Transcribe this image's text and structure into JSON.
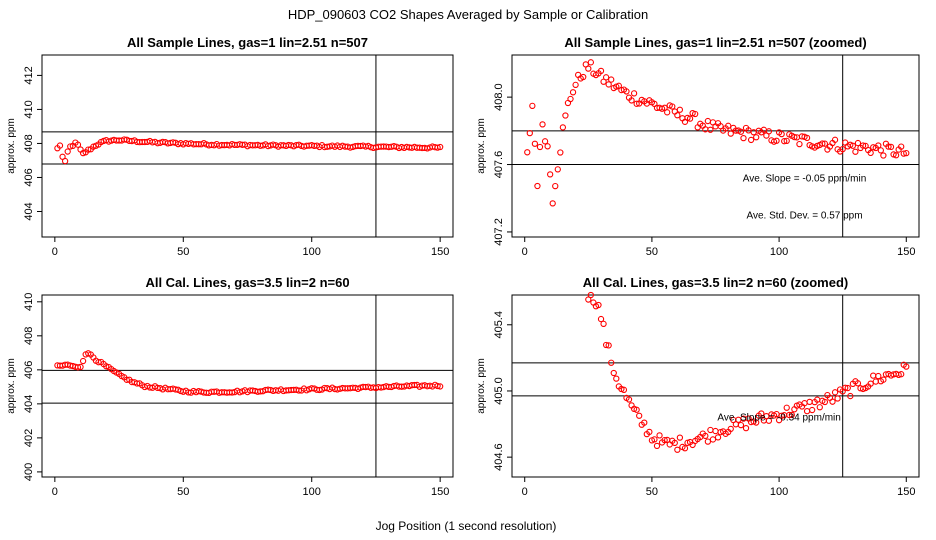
{
  "figure": {
    "title": "HDP_090603  CO2 Shapes Averaged by Sample or Calibration",
    "xlabel": "Jog Position (1 second resolution)"
  },
  "colors": {
    "points": "#ff0000",
    "lines": "#000000"
  },
  "chart_data": [
    {
      "id": "p1",
      "type": "scatter",
      "title": "All Sample Lines, gas=1 lin=2.51 n=507",
      "ylabel": "approx. ppm",
      "xlim": [
        -5,
        155
      ],
      "ylim": [
        402.5,
        413.2
      ],
      "xticks": [
        0,
        50,
        100,
        150
      ],
      "yticks": [
        404,
        406,
        408,
        410,
        412
      ],
      "hlines": [
        406.79,
        408.68
      ],
      "vlines": [
        125
      ],
      "annotations": [],
      "curve": [
        [
          1,
          407.7
        ],
        [
          2,
          407.9
        ],
        [
          3,
          407.2
        ],
        [
          4,
          406.9
        ],
        [
          5,
          407.5
        ],
        [
          6,
          407.8
        ],
        [
          7,
          407.9
        ],
        [
          8,
          408.0
        ],
        [
          9,
          407.9
        ],
        [
          10,
          407.6
        ],
        [
          11,
          407.4
        ],
        [
          12,
          407.5
        ],
        [
          14,
          407.7
        ],
        [
          16,
          407.9
        ],
        [
          18,
          408.05
        ],
        [
          20,
          408.15
        ],
        [
          25,
          408.2
        ],
        [
          30,
          408.15
        ],
        [
          40,
          408.05
        ],
        [
          50,
          408.0
        ],
        [
          60,
          407.95
        ],
        [
          75,
          407.9
        ],
        [
          100,
          407.85
        ],
        [
          125,
          407.8
        ],
        [
          150,
          407.75
        ]
      ]
    },
    {
      "id": "p2",
      "type": "scatter",
      "title": "All Sample Lines, gas=1 lin=2.51 n=507 (zoomed)",
      "ylabel": "approx. ppm",
      "xlim": [
        -5,
        155
      ],
      "ylim": [
        407.17,
        408.25
      ],
      "xticks": [
        0,
        50,
        100,
        150
      ],
      "yticks": [
        407.2,
        407.6,
        408.0
      ],
      "hlines": [
        407.6,
        407.8
      ],
      "vlines": [
        125
      ],
      "annotations": [
        "Ave. Slope =  -0.05  ppm/min",
        "Ave. Std. Dev. =  0.57  ppm"
      ],
      "curve": [
        [
          1,
          407.65
        ],
        [
          3,
          407.95
        ],
        [
          5,
          407.5
        ],
        [
          7,
          407.85
        ],
        [
          9,
          407.7
        ],
        [
          11,
          407.4
        ],
        [
          13,
          407.6
        ],
        [
          15,
          407.8
        ],
        [
          17,
          407.95
        ],
        [
          19,
          408.05
        ],
        [
          21,
          408.1
        ],
        [
          23,
          408.15
        ],
        [
          25,
          408.18
        ],
        [
          28,
          408.15
        ],
        [
          30,
          408.12
        ],
        [
          35,
          408.07
        ],
        [
          40,
          408.02
        ],
        [
          45,
          407.99
        ],
        [
          50,
          407.96
        ],
        [
          55,
          407.93
        ],
        [
          60,
          407.9
        ],
        [
          65,
          407.88
        ],
        [
          70,
          407.84
        ],
        [
          75,
          407.81
        ],
        [
          80,
          407.8
        ],
        [
          90,
          407.78
        ],
        [
          100,
          407.76
        ],
        [
          110,
          407.74
        ],
        [
          120,
          407.72
        ],
        [
          125,
          407.71
        ],
        [
          135,
          407.7
        ],
        [
          150,
          407.67
        ]
      ]
    },
    {
      "id": "p3",
      "type": "scatter",
      "title": "All Cal. Lines, gas=3.5 lin=2 n=60",
      "ylabel": "approx. ppm",
      "xlim": [
        -5,
        155
      ],
      "ylim": [
        399.7,
        410.4
      ],
      "xticks": [
        0,
        50,
        100,
        150
      ],
      "yticks": [
        400,
        402,
        404,
        406,
        408,
        410
      ],
      "hlines": [
        404.04,
        405.97
      ],
      "vlines": [
        125
      ],
      "annotations": [],
      "curve": [
        [
          1,
          406.2
        ],
        [
          5,
          406.3
        ],
        [
          8,
          406.15
        ],
        [
          10,
          406.2
        ],
        [
          12,
          406.95
        ],
        [
          14,
          406.9
        ],
        [
          16,
          406.6
        ],
        [
          20,
          406.2
        ],
        [
          25,
          405.7
        ],
        [
          30,
          405.3
        ],
        [
          35,
          405.05
        ],
        [
          40,
          404.95
        ],
        [
          45,
          404.85
        ],
        [
          50,
          404.75
        ],
        [
          55,
          404.7
        ],
        [
          60,
          404.7
        ],
        [
          70,
          404.72
        ],
        [
          80,
          404.78
        ],
        [
          90,
          404.82
        ],
        [
          100,
          404.86
        ],
        [
          110,
          404.9
        ],
        [
          120,
          404.95
        ],
        [
          130,
          405.0
        ],
        [
          140,
          405.05
        ],
        [
          150,
          405.08
        ]
      ]
    },
    {
      "id": "p4",
      "type": "scatter",
      "title": "All Cal. Lines, gas=3.5 lin=2 n=60 (zoomed)",
      "ylabel": "approx. ppm",
      "xlim": [
        -5,
        155
      ],
      "ylim": [
        404.48,
        405.58
      ],
      "xticks": [
        0,
        50,
        100,
        150
      ],
      "yticks": [
        404.6,
        405.0,
        405.4
      ],
      "hlines": [
        404.97,
        405.17
      ],
      "vlines": [
        125
      ],
      "annotations": [
        "Ave. Slope =  -0.34  ppm/min"
      ],
      "curve": [
        [
          25,
          405.58
        ],
        [
          28,
          405.55
        ],
        [
          30,
          405.45
        ],
        [
          32,
          405.3
        ],
        [
          34,
          405.18
        ],
        [
          36,
          405.08
        ],
        [
          38,
          405.02
        ],
        [
          40,
          404.96
        ],
        [
          42,
          404.9
        ],
        [
          45,
          404.83
        ],
        [
          48,
          404.77
        ],
        [
          50,
          404.72
        ],
        [
          55,
          404.68
        ],
        [
          60,
          404.68
        ],
        [
          70,
          404.72
        ],
        [
          80,
          404.78
        ],
        [
          90,
          404.82
        ],
        [
          100,
          404.86
        ],
        [
          110,
          404.9
        ],
        [
          120,
          404.95
        ],
        [
          130,
          405.02
        ],
        [
          140,
          405.08
        ],
        [
          150,
          405.13
        ]
      ]
    }
  ]
}
